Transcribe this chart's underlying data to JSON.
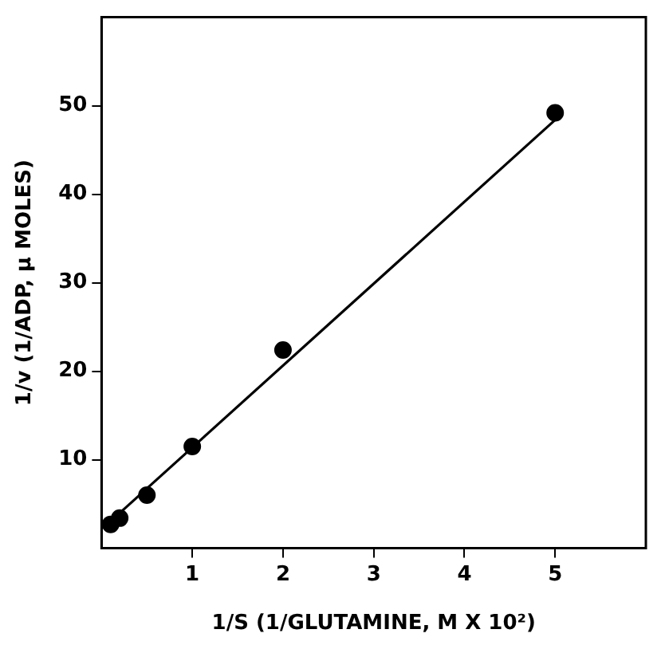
{
  "chart_data": {
    "type": "scatter",
    "xlabel": "1/S (1/GLUTAMINE, M X 10²)",
    "ylabel": "1/v (1/ADP, μ MOLES)",
    "xlim": [
      0,
      6
    ],
    "ylim": [
      0,
      60
    ],
    "xticks": [
      1,
      2,
      3,
      4,
      5
    ],
    "yticks": [
      10,
      20,
      30,
      40,
      50
    ],
    "grid": false,
    "legend": false,
    "marker": "circle",
    "series": [
      {
        "color": "#000000",
        "x": [
          0.1,
          0.2,
          0.5,
          1,
          2,
          5
        ],
        "values": [
          2.7,
          3.4,
          6.0,
          11.5,
          22.4,
          49.2
        ]
      },
      {
        "type": "line",
        "color": "#000000",
        "line_style": "solid",
        "marker": "none",
        "x": [
          0.04,
          5
        ],
        "values": [
          2.5,
          48.4
        ]
      }
    ]
  }
}
